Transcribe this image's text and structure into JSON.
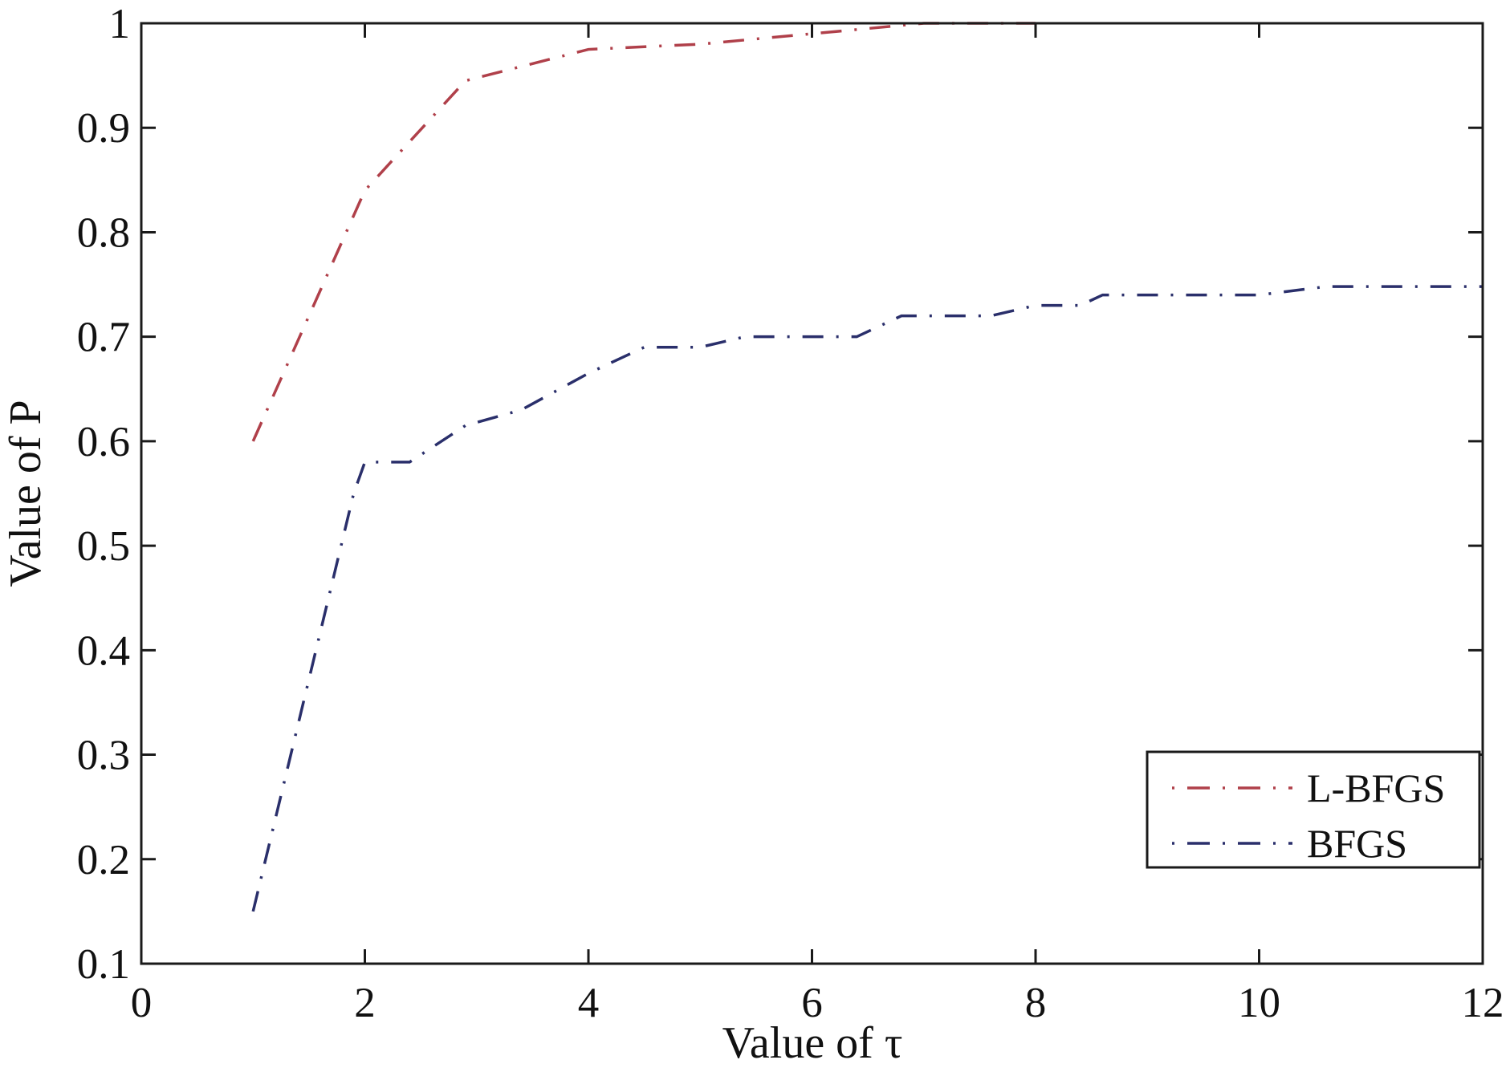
{
  "chart_data": {
    "type": "line",
    "title": "",
    "xlabel": "Value of τ",
    "ylabel": "Value of P",
    "xlim": [
      0,
      12
    ],
    "ylim": [
      0.1,
      1
    ],
    "xticks": [
      0,
      2,
      4,
      6,
      8,
      10,
      12
    ],
    "xtick_labels": [
      "0",
      "2",
      "4",
      "6",
      "8",
      "10",
      "12"
    ],
    "yticks": [
      0.1,
      0.2,
      0.3,
      0.4,
      0.5,
      0.6,
      0.7,
      0.8,
      0.9,
      1
    ],
    "ytick_labels": [
      "0.1",
      "0.2",
      "0.3",
      "0.4",
      "0.5",
      "0.6",
      "0.7",
      "0.8",
      "0.9",
      "1"
    ],
    "grid": false,
    "legend_position": "lower right",
    "series": [
      {
        "name": "L-BFGS",
        "color": "#b0404a",
        "linestyle": "dash-dot",
        "x": [
          1,
          2,
          2.9,
          4,
          5,
          6,
          7,
          8
        ],
        "y": [
          0.6,
          0.84,
          0.945,
          0.975,
          0.98,
          0.99,
          1.0,
          1.0
        ]
      },
      {
        "name": "BFGS",
        "color": "#2a2f6b",
        "linestyle": "dash-dot",
        "x": [
          1,
          1.9,
          2,
          2.4,
          2.9,
          3.4,
          4,
          4.5,
          5,
          5.4,
          6,
          6.4,
          6.8,
          7.6,
          8,
          8.4,
          8.6,
          10,
          10.6,
          12
        ],
        "y": [
          0.15,
          0.55,
          0.58,
          0.58,
          0.615,
          0.63,
          0.665,
          0.69,
          0.69,
          0.7,
          0.7,
          0.7,
          0.72,
          0.72,
          0.73,
          0.73,
          0.74,
          0.74,
          0.748,
          0.748
        ]
      }
    ]
  }
}
